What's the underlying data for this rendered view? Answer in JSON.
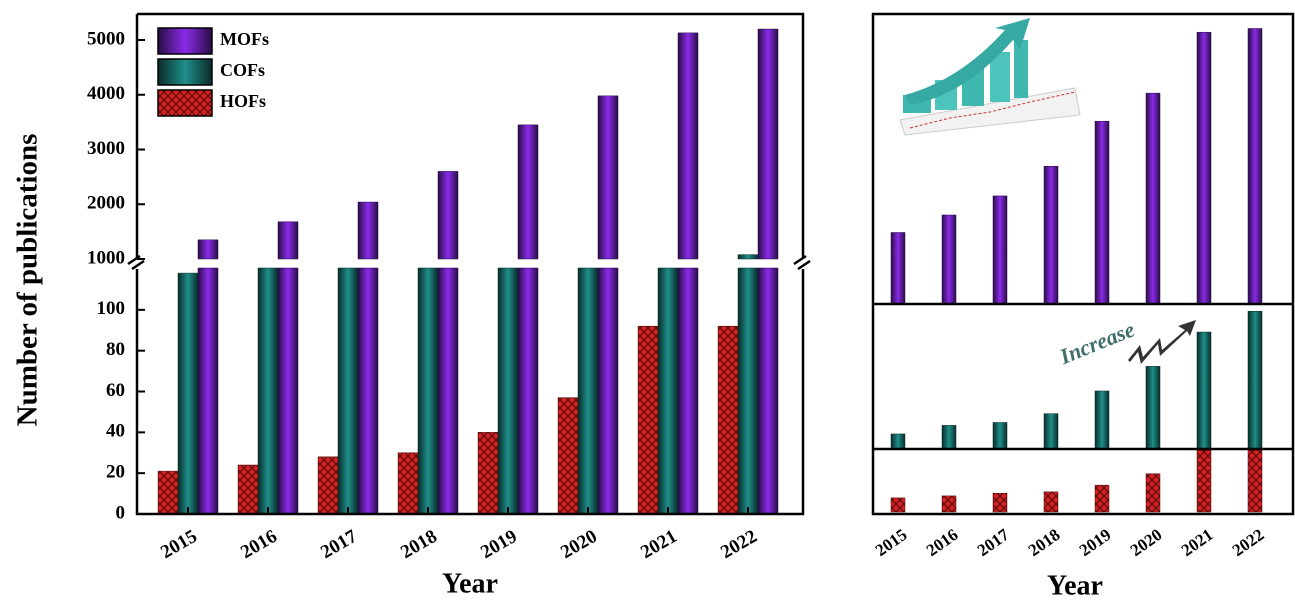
{
  "chart_data": [
    {
      "type": "broken_bar",
      "ylabel": "Number of publications",
      "xlabel": "Year",
      "categories": [
        "2015",
        "2016",
        "2017",
        "2018",
        "2019",
        "2020",
        "2021",
        "2022"
      ],
      "series": [
        {
          "name": "HOFs",
          "color": "#d42020",
          "hatch": true,
          "values": [
            21,
            24,
            28,
            30,
            40,
            57,
            92,
            92
          ]
        },
        {
          "name": "COFs",
          "color": "#1f8f8a",
          "values": [
            118,
            185,
            208,
            277,
            455,
            648,
            917,
            1080
          ]
        },
        {
          "name": "MOFs",
          "color": "#8a2be8",
          "values": [
            1350,
            1680,
            2040,
            2600,
            3450,
            3980,
            5130,
            5200
          ]
        }
      ],
      "legend_order": [
        "MOFs",
        "COFs",
        "HOFs"
      ],
      "legend": "upper left",
      "ylim_lower": [
        0,
        120
      ],
      "ylim_upper": [
        1000,
        5475
      ],
      "yticks": [
        0,
        20,
        40,
        60,
        80,
        100,
        1000,
        2000,
        3000,
        4000,
        5000
      ]
    },
    {
      "type": "bar_panels",
      "xlabel": "Year",
      "annotation": "Increase",
      "categories": [
        "2015",
        "2016",
        "2017",
        "2018",
        "2019",
        "2020",
        "2021",
        "2022"
      ],
      "series": [
        {
          "name": "MOFs",
          "color": "#8a2be8",
          "values": [
            1350,
            1680,
            2040,
            2600,
            3450,
            3980,
            5130,
            5200
          ]
        },
        {
          "name": "COFs",
          "color": "#1f8f8a",
          "values": [
            118,
            185,
            208,
            277,
            455,
            648,
            917,
            1080
          ]
        },
        {
          "name": "HOFs",
          "color": "#d42020",
          "hatch": true,
          "values": [
            21,
            24,
            28,
            30,
            40,
            57,
            92,
            92
          ]
        }
      ]
    }
  ]
}
